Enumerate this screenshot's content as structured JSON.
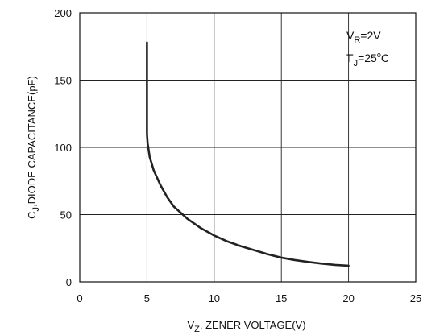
{
  "chart_data": {
    "type": "line",
    "title": "",
    "xlabel": {
      "main": "V",
      "sub": "Z",
      "rest": ", ZENER  VOLTAGE(V)"
    },
    "ylabel": {
      "main": "C",
      "sub": "J",
      "rest": ",DIODE CAPACITANCE(pF)"
    },
    "xlim": [
      0,
      25
    ],
    "ylim": [
      0,
      200
    ],
    "xticks": [
      0,
      5,
      10,
      15,
      20,
      25
    ],
    "yticks": [
      0,
      50,
      100,
      150,
      200
    ],
    "grid": true,
    "annotations": [
      {
        "main": "V",
        "sub": "R",
        "rest": "=2V"
      },
      {
        "main": "T",
        "sub": "J",
        "rest": "=25",
        "sup": "o",
        "tail": "C"
      }
    ],
    "series": [
      {
        "x": [
          5.0,
          5.0,
          5.05,
          5.2,
          5.5,
          6.0,
          6.5,
          7.0,
          8.0,
          9.0,
          10.0,
          11.0,
          12.0,
          13.0,
          14.0,
          15.0,
          16.0,
          17.0,
          18.0,
          19.0,
          20.0
        ],
        "y": [
          178,
          110,
          103,
          93,
          83,
          72,
          63,
          56,
          47,
          40,
          34.5,
          30,
          26.5,
          23.5,
          20.5,
          18,
          16.2,
          14.8,
          13.6,
          12.6,
          12
        ]
      }
    ]
  }
}
